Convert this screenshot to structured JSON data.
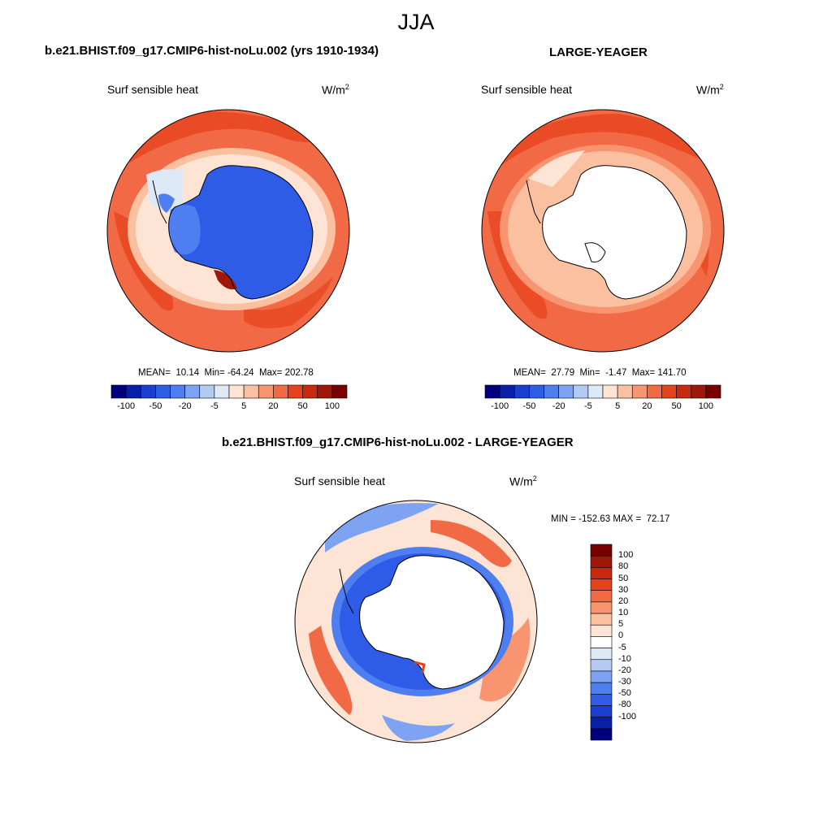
{
  "figure_title": "JJA",
  "panels": [
    {
      "title": "b.e21.BHIST.f09_g17.CMIP6-hist-noLu.002 (yrs 1910-1934)",
      "variable": "Surf sensible heat",
      "units_base": "W/m",
      "units_exp": "2",
      "stats": "MEAN=  10.14  Min= -64.24  Max= 202.78"
    },
    {
      "title": "LARGE-YEAGER",
      "variable": "Surf sensible heat",
      "units_base": "W/m",
      "units_exp": "2",
      "stats": "MEAN=  27.79  Min=  -1.47  Max= 141.70"
    },
    {
      "title": "b.e21.BHIST.f09_g17.CMIP6-hist-noLu.002 - LARGE-YEAGER",
      "variable": "Surf sensible heat",
      "units_base": "W/m",
      "units_exp": "2",
      "stats": "MIN = -152.63 MAX =  72.17"
    }
  ],
  "colorbar_abs": {
    "colors": [
      "#00007f",
      "#0a1fa8",
      "#1a3fd0",
      "#2e5ce6",
      "#4f7ef0",
      "#7ea3f2",
      "#b3cbf2",
      "#dde9f6",
      "#fde4d4",
      "#fbc0a0",
      "#f89570",
      "#f26a45",
      "#e5431e",
      "#c72a10",
      "#a0170a",
      "#7a0000"
    ],
    "labels": [
      "-100",
      "-50",
      "-20",
      "-5",
      "5",
      "20",
      "50",
      "100"
    ]
  },
  "colorbar_diff": {
    "colors_top_to_bottom": [
      "#7a0000",
      "#a0170a",
      "#c72a10",
      "#e5431e",
      "#f26a45",
      "#f89570",
      "#fbc0a0",
      "#fde4d4",
      "#ffffff",
      "#dde9f6",
      "#b3cbf2",
      "#7ea3f2",
      "#4f7ef0",
      "#2e5ce6",
      "#1a3fd0",
      "#0a1fa8",
      "#00007f"
    ],
    "labels": [
      "100",
      "80",
      "50",
      "30",
      "20",
      "10",
      "5",
      "0",
      "-5",
      "-10",
      "-20",
      "-30",
      "-50",
      "-80",
      "-100"
    ]
  },
  "map_colors": {
    "ocean_warm_dark": "#e5431e",
    "ocean_warm": "#f26a45",
    "ocean_warm_light": "#f89570",
    "ocean_pale": "#fbc0a0",
    "ice_blue": "#2e5ce6",
    "ice_blue_light": "#4f7ef0",
    "land_empty": "#ffffff",
    "coast": "#000000"
  }
}
